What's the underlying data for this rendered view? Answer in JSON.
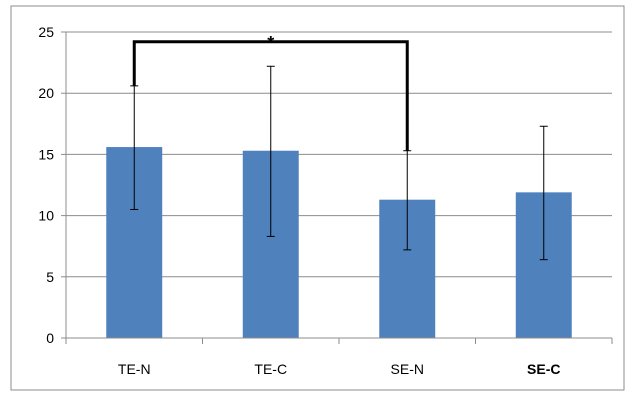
{
  "chart_data": {
    "type": "bar",
    "title": "",
    "xlabel": "",
    "ylabel": "",
    "categories": [
      "TE-N",
      "TE-C",
      "SE-N",
      "SE-C"
    ],
    "series": [
      {
        "values": [
          15.6,
          15.3,
          11.3,
          11.9
        ],
        "error_low": [
          10.5,
          8.3,
          7.2,
          6.4
        ],
        "error_high": [
          20.6,
          22.2,
          15.3,
          17.3
        ]
      }
    ],
    "ylim": [
      0,
      25
    ],
    "yticks": [
      "0",
      "5",
      "10",
      "15",
      "20",
      "25"
    ],
    "grid": true,
    "legend": "none",
    "bar_color": "#4F81BD",
    "annotation": {
      "text": "*",
      "from_category": "TE-N",
      "to_category": "SE-N"
    }
  }
}
